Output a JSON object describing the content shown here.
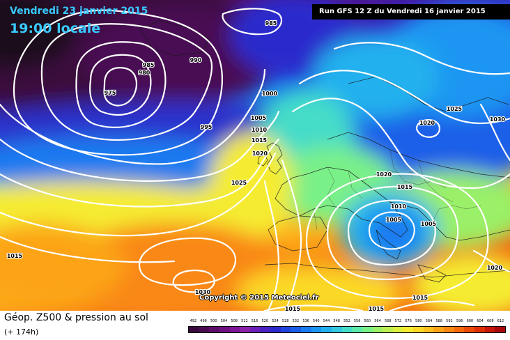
{
  "header": {
    "date_title": "Vendredi 23 janvier 2015",
    "time_title": "19:00 locale",
    "run_banner": "Run GFS 12 Z du Vendredi 16 janvier 2015"
  },
  "map": {
    "copyright": "Copyright © 2015 Meteociel.fr",
    "isobar_color": "#ffffff",
    "isobar_labels": [
      "985",
      "990",
      "985",
      "980",
      "975",
      "1000",
      "995",
      "1005",
      "1010",
      "1015",
      "1020",
      "1025",
      "1025",
      "1030",
      "1020",
      "1020",
      "1015",
      "1010",
      "1005",
      "1005",
      "1015",
      "1030",
      "1015",
      "1015",
      "1015",
      "1020"
    ]
  },
  "legend": {
    "title": "Géop. Z500 & pression au sol",
    "subtitle": "(+ 174h)",
    "scale_values": [
      "492",
      "496",
      "500",
      "504",
      "508",
      "512",
      "516",
      "520",
      "524",
      "528",
      "532",
      "536",
      "540",
      "544",
      "548",
      "552",
      "556",
      "560",
      "564",
      "568",
      "572",
      "576",
      "580",
      "584",
      "588",
      "592",
      "596",
      "600",
      "604",
      "608",
      "612"
    ],
    "scale_colors": [
      "#3a0a3e",
      "#4a0a52",
      "#5c0d68",
      "#6e1080",
      "#7e1596",
      "#8c22aa",
      "#6b1fb8",
      "#4a22c4",
      "#2a2acc",
      "#1f44dd",
      "#1a5ee8",
      "#1a7af0",
      "#1a96f2",
      "#22b0ee",
      "#33c8e0",
      "#44dcc8",
      "#5ce8a8",
      "#7af088",
      "#9af068",
      "#bcf050",
      "#dcf040",
      "#f5ec30",
      "#fbd828",
      "#fcc020",
      "#fca418",
      "#f98812",
      "#f46a0c",
      "#ec4c08",
      "#de2e06",
      "#c81608",
      "#aa0808"
    ]
  }
}
